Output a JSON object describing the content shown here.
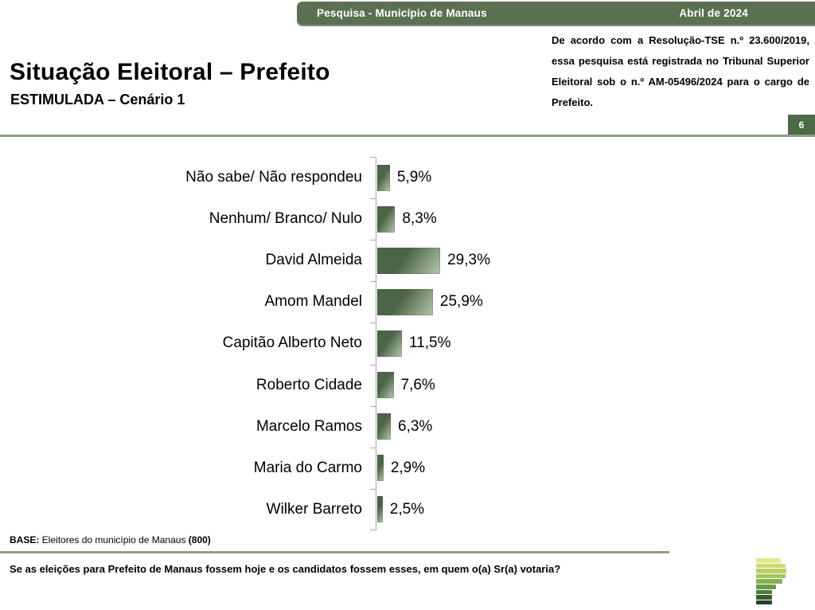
{
  "header": {
    "left": "Pesquisa - Município de Manaus",
    "right": "Abril de 2024"
  },
  "title": "Situação Eleitoral – Prefeito",
  "subtitle": "ESTIMULADA – Cenário 1",
  "registration_note": "De acordo com a Resolução-TSE n.º 23.600/2019, essa pesquisa está registrada no Tribunal Superior Eleitoral sob o n.º AM-05496/2024 para o cargo de Prefeito.",
  "page_number": "6",
  "chart_data": {
    "type": "bar",
    "orientation": "horizontal",
    "categories": [
      "Não sabe/ Não respondeu",
      "Nenhum/ Branco/ Nulo",
      "David Almeida",
      "Amom Mandel",
      "Capitão Alberto Neto",
      "Roberto Cidade",
      "Marcelo Ramos",
      "Maria do Carmo",
      "Wilker Barreto"
    ],
    "values": [
      5.9,
      8.3,
      29.3,
      25.9,
      11.5,
      7.6,
      6.3,
      2.9,
      2.5
    ],
    "value_labels": [
      "5,9%",
      "8,3%",
      "29,3%",
      "25,9%",
      "11,5%",
      "7,6%",
      "6,3%",
      "2,9%",
      "2,5%"
    ],
    "title": "Situação Eleitoral – Prefeito (ESTIMULADA – Cenário 1)",
    "xlabel": "",
    "ylabel": "",
    "xlim": [
      0,
      35
    ],
    "grid": false,
    "legend": "none",
    "bar_color_dark": "#4c6447",
    "bar_color_light": "#b5c8ac"
  },
  "base": {
    "label": "BASE:",
    "text": " Eleitores do município de Manaus ",
    "count": "(800)"
  },
  "question": "Se as eleições para Prefeito de Manaus fossem hoje e os candidatos fossem esses, em quem o(a) Sr(a) votaria?",
  "colors": {
    "banner_green": "#5a7052",
    "badge_green": "#4e6a46",
    "accent_line": "#8ca181",
    "axis_gray": "#a9a9a9"
  },
  "logo": {
    "name": "instituto-logo",
    "bars": [
      {
        "w": 31,
        "color": "#e4e98f"
      },
      {
        "w": 37,
        "color": "#cddb6c"
      },
      {
        "w": 38,
        "color": "#b5cf63"
      },
      {
        "w": 37,
        "color": "#a0c75c"
      },
      {
        "w": 33,
        "color": "#85b253"
      },
      {
        "w": 25,
        "color": "#699b47"
      },
      {
        "w": 20,
        "color": "#4d7a3b"
      },
      {
        "w": 20,
        "color": "#365e2d"
      },
      {
        "w": 20,
        "color": "#254122"
      }
    ]
  }
}
